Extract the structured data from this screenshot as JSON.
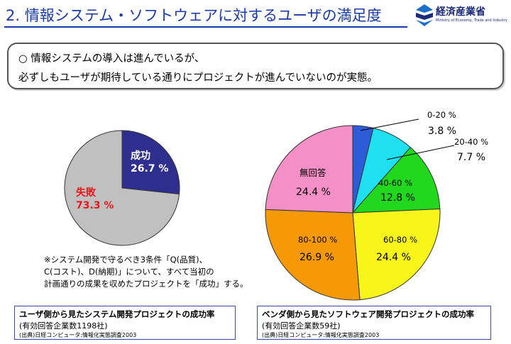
{
  "header": {
    "title": "2. 情報システム・ソフトウェアに対するユーザの満足度",
    "logo_name": "経済産業省",
    "logo_sub": "Ministry of Economy, Trade and Industry",
    "accent_color": "#1a3aa8"
  },
  "summary": {
    "line1": "○ 情報システムの導入は進んでいるが、",
    "line2": "必ずしもユーザが期待している通りにプロジェクトが進んでいないのが実態。"
  },
  "note": {
    "line1": "※システム開発で守るべき3条件「Q(品質)、",
    "line2": "C(コスト)、D(納期)」について、すべて当初の",
    "line3": "計画通りの成果を収めたプロジェクトを「成功」する。"
  },
  "source_left": {
    "title": "ユーザ側から見たシステム開発プロジェクトの成功率",
    "count": "(有効回答企業数1198社)",
    "source": "(出典)日経コンピュータ:情報化実態調査2003"
  },
  "source_right": {
    "title": "ベンダ側から見たソフトウェア開発プロジェクトの成功率",
    "count": "(有効回答企業数59社)",
    "source": "(出典)日経コンピュータ:情報化実態調査2003"
  },
  "chart_data": [
    {
      "type": "pie",
      "slices": [
        {
          "label": "成功",
          "value_label": "26.7 %",
          "value": 26.7,
          "color": "#2e2e8f",
          "text_color": "#ffffff"
        },
        {
          "label": "失敗",
          "value_label": "73.3 %",
          "value": 73.3,
          "color": "#c0c0c0",
          "text_color": "#e8181c"
        }
      ]
    },
    {
      "type": "pie",
      "slices": [
        {
          "label": "0-20 %",
          "value_label": "3.8 %",
          "value": 3.8,
          "color": "#2e5bd6"
        },
        {
          "label": "20-40 %",
          "value_label": "7.7 %",
          "value": 7.7,
          "color": "#1ee0f0"
        },
        {
          "label": "40-60 %",
          "value_label": "12.8 %",
          "value": 12.8,
          "color": "#22d81e"
        },
        {
          "label": "60-80 %",
          "value_label": "24.4 %",
          "value": 24.4,
          "color": "#f7f51a"
        },
        {
          "label": "80-100 %",
          "value_label": "26.9 %",
          "value": 26.9,
          "color": "#f59a06"
        },
        {
          "label": "無回答",
          "value_label": "24.4 %",
          "value": 24.4,
          "color": "#f58fc8"
        }
      ]
    }
  ]
}
